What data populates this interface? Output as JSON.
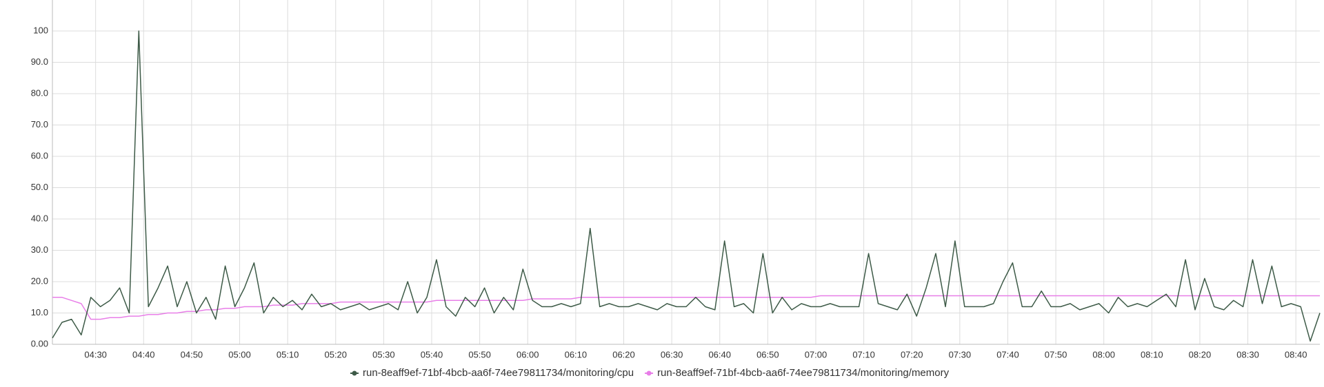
{
  "chart_data": {
    "type": "line",
    "x": [
      "04:21",
      "04:23",
      "04:25",
      "04:27",
      "04:29",
      "04:31",
      "04:33",
      "04:35",
      "04:37",
      "04:39",
      "04:41",
      "04:43",
      "04:45",
      "04:47",
      "04:49",
      "04:51",
      "04:53",
      "04:55",
      "04:57",
      "04:59",
      "05:01",
      "05:03",
      "05:05",
      "05:07",
      "05:09",
      "05:11",
      "05:13",
      "05:15",
      "05:17",
      "05:19",
      "05:21",
      "05:23",
      "05:25",
      "05:27",
      "05:29",
      "05:31",
      "05:33",
      "05:35",
      "05:37",
      "05:39",
      "05:41",
      "05:43",
      "05:45",
      "05:47",
      "05:49",
      "05:51",
      "05:53",
      "05:55",
      "05:57",
      "05:59",
      "06:01",
      "06:03",
      "06:05",
      "06:07",
      "06:09",
      "06:11",
      "06:13",
      "06:15",
      "06:17",
      "06:19",
      "06:21",
      "06:23",
      "06:25",
      "06:27",
      "06:29",
      "06:31",
      "06:33",
      "06:35",
      "06:37",
      "06:39",
      "06:41",
      "06:43",
      "06:45",
      "06:47",
      "06:49",
      "06:51",
      "06:53",
      "06:55",
      "06:57",
      "06:59",
      "07:01",
      "07:03",
      "07:05",
      "07:07",
      "07:09",
      "07:11",
      "07:13",
      "07:15",
      "07:17",
      "07:19",
      "07:21",
      "07:23",
      "07:25",
      "07:27",
      "07:29",
      "07:31",
      "07:33",
      "07:35",
      "07:37",
      "07:39",
      "07:41",
      "07:43",
      "07:45",
      "07:47",
      "07:49",
      "07:51",
      "07:53",
      "07:55",
      "07:57",
      "07:59",
      "08:01",
      "08:03",
      "08:05",
      "08:07",
      "08:09",
      "08:11",
      "08:13",
      "08:15",
      "08:17",
      "08:19",
      "08:21",
      "08:23",
      "08:25",
      "08:27",
      "08:29",
      "08:31",
      "08:33",
      "08:35",
      "08:37",
      "08:39",
      "08:41",
      "08:43",
      "08:45"
    ],
    "series": [
      {
        "name": "run-8eaff9ef-71bf-4bcb-aa6f-74ee79811734/monitoring/cpu",
        "color": "#3d5a47",
        "values": [
          2,
          7,
          8,
          3,
          15,
          12,
          14,
          18,
          10,
          100,
          12,
          18,
          25,
          12,
          20,
          10,
          15,
          8,
          25,
          12,
          18,
          26,
          10,
          15,
          12,
          14,
          11,
          16,
          12,
          13,
          11,
          12,
          13,
          11,
          12,
          13,
          11,
          20,
          10,
          15,
          27,
          12,
          9,
          15,
          12,
          18,
          10,
          15,
          11,
          24,
          14,
          12,
          12,
          13,
          12,
          13,
          37,
          12,
          13,
          12,
          12,
          13,
          12,
          11,
          13,
          12,
          12,
          15,
          12,
          11,
          33,
          12,
          13,
          10,
          29,
          10,
          15,
          11,
          13,
          12,
          12,
          13,
          12,
          12,
          12,
          29,
          13,
          12,
          11,
          16,
          9,
          18,
          29,
          12,
          33,
          12,
          12,
          12,
          13,
          20,
          26,
          12,
          12,
          17,
          12,
          12,
          13,
          11,
          12,
          13,
          10,
          15,
          12,
          13,
          12,
          14,
          16,
          12,
          27,
          11,
          21,
          12,
          11,
          14,
          12,
          27,
          13,
          25,
          12,
          13,
          12,
          1,
          10
        ]
      },
      {
        "name": "run-8eaff9ef-71bf-4bcb-aa6f-74ee79811734/monitoring/memory",
        "color": "#e87ee8",
        "values": [
          15,
          15,
          14,
          13,
          8,
          8,
          8.5,
          8.5,
          9,
          9,
          9.5,
          9.5,
          10,
          10,
          10.5,
          10.5,
          11,
          11,
          11.5,
          11.5,
          12,
          12,
          12,
          12.5,
          12.5,
          12.5,
          13,
          13,
          13,
          13,
          13.5,
          13.5,
          13.5,
          13.5,
          13.5,
          13.5,
          13.5,
          13.5,
          13.5,
          13.5,
          14,
          14,
          14,
          14,
          14,
          14,
          14,
          14,
          14,
          14,
          14.5,
          14.5,
          14.5,
          14.5,
          14.5,
          15,
          15,
          15,
          15,
          15,
          15,
          15,
          15,
          15,
          15,
          15,
          15,
          15,
          15,
          15,
          15,
          15,
          15,
          15,
          15,
          15,
          15,
          15,
          15,
          15,
          15.5,
          15.5,
          15.5,
          15.5,
          15.5,
          15.5,
          15.5,
          15.5,
          15.5,
          15.5,
          15.5,
          15.5,
          15.5,
          15.5,
          15.5,
          15.5,
          15.5,
          15.5,
          15.5,
          15.5,
          15.5,
          15.5,
          15.5,
          15.5,
          15.5,
          15.5,
          15.5,
          15.5,
          15.5,
          15.5,
          15.5,
          15.5,
          15.5,
          15.5,
          15.5,
          15.5,
          15.5,
          15.5,
          15.5,
          15.5,
          15.5,
          15.5,
          15.5,
          15.5,
          15.5,
          15.5,
          15.5,
          15.5,
          15.5,
          15.5,
          15.5,
          15.5,
          15.5
        ]
      }
    ],
    "xlim": [
      "04:21",
      "08:45"
    ],
    "xticks": [
      "04:30",
      "04:40",
      "04:50",
      "05:00",
      "05:10",
      "05:20",
      "05:30",
      "05:40",
      "05:50",
      "06:00",
      "06:10",
      "06:20",
      "06:30",
      "06:40",
      "06:50",
      "07:00",
      "07:10",
      "07:20",
      "07:30",
      "07:40",
      "07:50",
      "08:00",
      "08:10",
      "08:20",
      "08:30",
      "08:40"
    ],
    "ylim": [
      0,
      100
    ],
    "yticks": [
      {
        "value": 0,
        "label": "0.00"
      },
      {
        "value": 10,
        "label": "10.0"
      },
      {
        "value": 20,
        "label": "20.0"
      },
      {
        "value": 30,
        "label": "30.0"
      },
      {
        "value": 40,
        "label": "40.0"
      },
      {
        "value": 50,
        "label": "50.0"
      },
      {
        "value": 60,
        "label": "60.0"
      },
      {
        "value": 70,
        "label": "70.0"
      },
      {
        "value": 80,
        "label": "80.0"
      },
      {
        "value": 90,
        "label": "90.0"
      },
      100
    ],
    "grid": true,
    "legend": "bottom"
  }
}
